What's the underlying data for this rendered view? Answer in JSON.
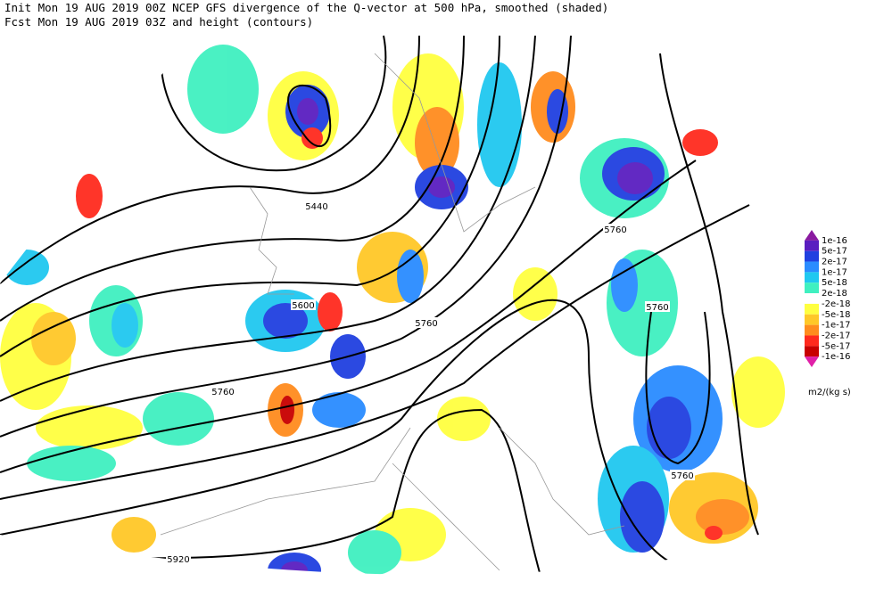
{
  "header": {
    "line1": "Init  Mon 19 AUG 2019 00Z  NCEP GFS divergence of the Q-vector at 500 hPa, smoothed (shaded)",
    "line2": "Fcst Mon 19 AUG 2019 03Z  and height (contours)"
  },
  "contour_labels": [
    "5440",
    "5600",
    "5760",
    "5760",
    "5760",
    "5760",
    "5760",
    "5920"
  ],
  "colorbar": {
    "labels": [
      "1e-16",
      "5e-17",
      "2e-17",
      "1e-17",
      "5e-18",
      "2e-18",
      "-2e-18",
      "-5e-18",
      "-1e-17",
      "-2e-17",
      "-5e-17",
      "-1e-16"
    ],
    "colors": [
      "#8a1aa0",
      "#5a1ec0",
      "#2040e0",
      "#2a8cff",
      "#20c8f0",
      "#40f0c0",
      "#ffffff",
      "#ffff40",
      "#ffc828",
      "#ff8c1e",
      "#ff2a1e",
      "#c80000",
      "#e020a8"
    ],
    "units": "m2/(kg s)"
  }
}
